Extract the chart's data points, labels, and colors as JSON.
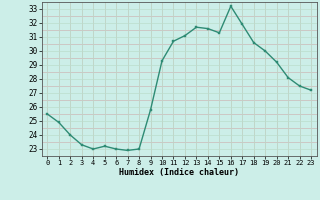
{
  "x": [
    0,
    1,
    2,
    3,
    4,
    5,
    6,
    7,
    8,
    9,
    10,
    11,
    12,
    13,
    14,
    15,
    16,
    17,
    18,
    19,
    20,
    21,
    22,
    23
  ],
  "y": [
    25.5,
    24.9,
    24.0,
    23.3,
    23.0,
    23.2,
    23.0,
    22.9,
    23.0,
    25.8,
    29.3,
    30.7,
    31.1,
    31.7,
    31.6,
    31.3,
    33.2,
    31.9,
    30.6,
    30.0,
    29.2,
    28.1,
    27.5,
    27.2
  ],
  "xlabel": "Humidex (Indice chaleur)",
  "ylabel": "",
  "ylim": [
    22.5,
    33.5
  ],
  "xlim": [
    -0.5,
    23.5
  ],
  "yticks": [
    23,
    24,
    25,
    26,
    27,
    28,
    29,
    30,
    31,
    32,
    33
  ],
  "xticks": [
    0,
    1,
    2,
    3,
    4,
    5,
    6,
    7,
    8,
    9,
    10,
    11,
    12,
    13,
    14,
    15,
    16,
    17,
    18,
    19,
    20,
    21,
    22,
    23
  ],
  "line_color": "#2e8b74",
  "marker_color": "#2e8b74",
  "bg_plot": "#cceee8",
  "grid_color_major": "#bbddcc",
  "grid_color_minor": "#ddbbbb",
  "tick_label_color": "#000000",
  "xlabel_color": "#000000"
}
